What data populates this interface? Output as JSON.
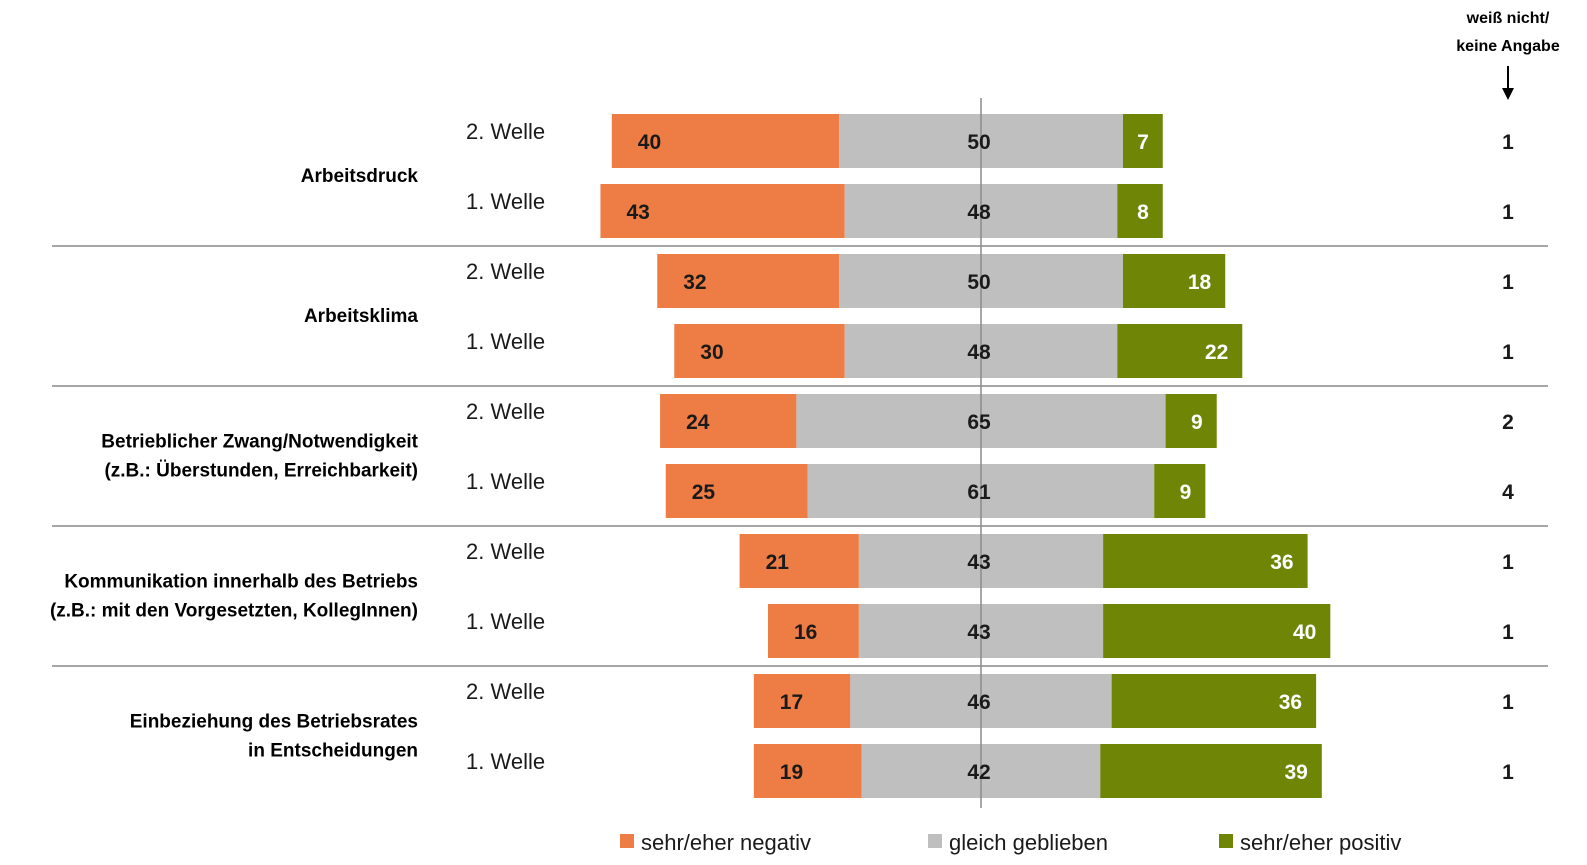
{
  "chart_data": {
    "type": "bar",
    "orientation": "horizontal",
    "stacked": "diverging",
    "title": "",
    "xlabel": "",
    "ylabel": "",
    "dont_know_header": [
      "weiß nicht/",
      "keine Angabe"
    ],
    "legend": {
      "placement": "bottom",
      "items": [
        {
          "label": "sehr/eher negativ",
          "color": "#ED7D45"
        },
        {
          "label": "gleich geblieben",
          "color": "#BFBFBF"
        },
        {
          "label": "sehr/eher positiv",
          "color": "#6E8505"
        }
      ]
    },
    "groups": [
      {
        "label": [
          "Arbeitsdruck"
        ],
        "rows": [
          {
            "wave": "2. Welle",
            "negativ": 40,
            "gleich": 50,
            "positiv": 7,
            "keine_angabe": 1
          },
          {
            "wave": "1. Welle",
            "negativ": 43,
            "gleich": 48,
            "positiv": 8,
            "keine_angabe": 1
          }
        ]
      },
      {
        "label": [
          "Arbeitsklima"
        ],
        "rows": [
          {
            "wave": "2. Welle",
            "negativ": 32,
            "gleich": 50,
            "positiv": 18,
            "keine_angabe": 1
          },
          {
            "wave": "1. Welle",
            "negativ": 30,
            "gleich": 48,
            "positiv": 22,
            "keine_angabe": 1
          }
        ]
      },
      {
        "label": [
          "Betrieblicher Zwang/Notwendigkeit",
          "(z.B.: Überstunden, Erreichbarkeit)"
        ],
        "rows": [
          {
            "wave": "2. Welle",
            "negativ": 24,
            "gleich": 65,
            "positiv": 9,
            "keine_angabe": 2
          },
          {
            "wave": "1. Welle",
            "negativ": 25,
            "gleich": 61,
            "positiv": 9,
            "keine_angabe": 4
          }
        ]
      },
      {
        "label": [
          "Kommunikation innerhalb des Betriebs",
          "(z.B.: mit den Vorgesetzten, KollegInnen)"
        ],
        "rows": [
          {
            "wave": "2. Welle",
            "negativ": 21,
            "gleich": 43,
            "positiv": 36,
            "keine_angabe": 1
          },
          {
            "wave": "1. Welle",
            "negativ": 16,
            "gleich": 43,
            "positiv": 40,
            "keine_angabe": 1
          }
        ]
      },
      {
        "label": [
          "Einbeziehung des Betriebsrates",
          "in Entscheidungen"
        ],
        "rows": [
          {
            "wave": "2. Welle",
            "negativ": 17,
            "gleich": 46,
            "positiv": 36,
            "keine_angabe": 1
          },
          {
            "wave": "1. Welle",
            "negativ": 19,
            "gleich": 42,
            "positiv": 39,
            "keine_angabe": 1
          }
        ]
      }
    ]
  }
}
